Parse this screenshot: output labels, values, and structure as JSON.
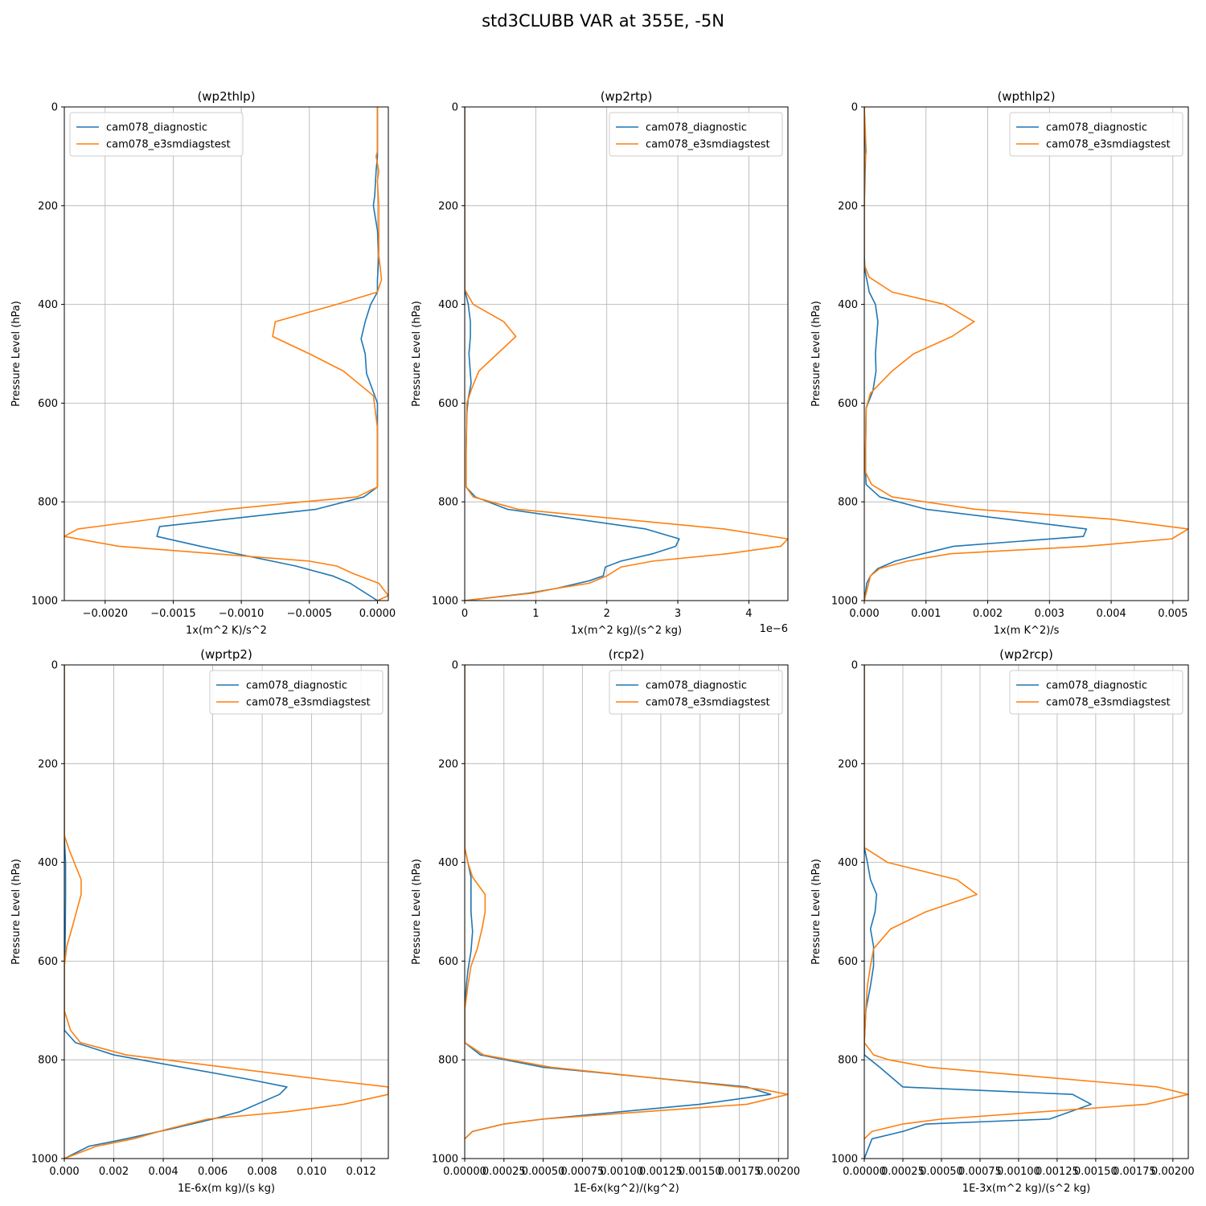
{
  "suptitle": "std3CLUBB VAR at 355E, -5N",
  "colors": {
    "cam078_diagnostic": "#1f77b4",
    "cam078_e3smdiagstest": "#ff7f0e",
    "grid": "#b0b0b0"
  },
  "chart_data": [
    {
      "type": "line",
      "title": "(wp2thlp)",
      "xlabel": "1x(m^2 K)/s^2",
      "ylabel": "Pressure Level (hPa)",
      "xlim": [
        -0.0023,
        8e-05
      ],
      "ylim": [
        1000,
        0
      ],
      "xticks": [
        -0.002,
        -0.0015,
        -0.001,
        -0.0005,
        0.0
      ],
      "xticklabels": [
        "−0.0020",
        "−0.0015",
        "−0.0010",
        "−0.0005",
        "0.0000"
      ],
      "yticks": [
        0,
        200,
        400,
        600,
        800,
        1000
      ],
      "grid": true,
      "legend": "top-left",
      "series": [
        {
          "name": "cam078_diagnostic",
          "x": [
            0,
            0,
            -1e-05,
            -2e-05,
            -3e-05,
            0,
            1e-05,
            0,
            0,
            -5e-05,
            -9e-05,
            -0.00012,
            -9e-05,
            -8e-05,
            0,
            0,
            0,
            -0.0001,
            -0.00045,
            -0.0016,
            -0.00162,
            -0.0013,
            -0.0006,
            -0.00033,
            -0.0002,
            0
          ],
          "y": [
            0,
            100,
            130,
            180,
            200,
            250,
            300,
            350,
            375,
            400,
            435,
            470,
            500,
            540,
            600,
            700,
            770,
            790,
            815,
            850,
            870,
            890,
            930,
            950,
            965,
            1000
          ]
        },
        {
          "name": "cam078_e3smdiagstest",
          "x": [
            0,
            0,
            -1e-05,
            1e-05,
            0,
            1e-05,
            1e-05,
            3e-05,
            0,
            -0.0003,
            -0.00075,
            -0.00077,
            -0.0005,
            -0.00025,
            -3e-05,
            0,
            0,
            -0.00015,
            -0.00055,
            -0.0011,
            -0.0022,
            -0.0023,
            -0.0019,
            -0.0005,
            -0.0003,
            -0.00018,
            1e-05,
            8e-05,
            0
          ],
          "y": [
            0,
            90,
            100,
            130,
            150,
            200,
            300,
            350,
            375,
            400,
            435,
            465,
            500,
            535,
            585,
            650,
            770,
            790,
            800,
            815,
            855,
            870,
            890,
            920,
            930,
            945,
            965,
            990,
            1000
          ]
        }
      ]
    },
    {
      "type": "line",
      "title": "(wp2rtp)",
      "xlabel": "1x(m^2 kg)/(s^2 kg)",
      "offset_text": "1e−6",
      "ylabel": "Pressure Level (hPa)",
      "xlim": [
        0,
        4.55
      ],
      "ylim": [
        1000,
        0
      ],
      "xticks": [
        0,
        1,
        2,
        3,
        4
      ],
      "xticklabels": [
        "0",
        "1",
        "2",
        "3",
        "4"
      ],
      "yticks": [
        0,
        200,
        400,
        600,
        800,
        1000
      ],
      "grid": true,
      "legend": "top-right",
      "series": [
        {
          "name": "cam078_diagnostic",
          "x": [
            0,
            0,
            0,
            0.05,
            0.08,
            0.08,
            0.06,
            0.09,
            0.05,
            0.03,
            0.02,
            0.02,
            0.15,
            0.6,
            2.55,
            3.02,
            2.97,
            2.65,
            2.2,
            1.98,
            1.95,
            1.75,
            1.3,
            0.9,
            0
          ],
          "y": [
            0,
            200,
            370,
            400,
            435,
            465,
            500,
            560,
            590,
            620,
            700,
            770,
            790,
            815,
            855,
            875,
            890,
            905,
            920,
            932,
            950,
            960,
            975,
            985,
            1000
          ]
        },
        {
          "name": "cam078_e3smdiagstest",
          "x": [
            0,
            0,
            0,
            0.12,
            0.55,
            0.72,
            0.2,
            0.1,
            0.03,
            0.02,
            0.02,
            0.12,
            0.75,
            3.65,
            4.55,
            4.45,
            3.7,
            2.65,
            2.2,
            2.0,
            1.75,
            1.3,
            0.95,
            0
          ],
          "y": [
            0,
            200,
            370,
            400,
            435,
            465,
            535,
            570,
            600,
            700,
            770,
            790,
            815,
            855,
            875,
            890,
            905,
            920,
            932,
            950,
            965,
            975,
            985,
            1000
          ]
        }
      ]
    },
    {
      "type": "line",
      "title": "(wpthlp2)",
      "xlabel": "1x(m K^2)/s",
      "ylabel": "Pressure Level (hPa)",
      "xlim": [
        0,
        0.00525
      ],
      "ylim": [
        1000,
        0
      ],
      "xticks": [
        0,
        0.001,
        0.002,
        0.003,
        0.004,
        0.005
      ],
      "xticklabels": [
        "0.000",
        "0.001",
        "0.002",
        "0.003",
        "0.004",
        "0.005"
      ],
      "yticks": [
        0,
        200,
        400,
        600,
        800,
        1000
      ],
      "grid": true,
      "legend": "top-right",
      "series": [
        {
          "name": "cam078_diagnostic",
          "x": [
            0,
            2e-05,
            2e-05,
            0,
            0,
            1e-05,
            8e-05,
            0.00018,
            0.00022,
            0.00018,
            0.00019,
            0.00014,
            3e-05,
            2e-05,
            2e-05,
            3e-05,
            0.00025,
            0.001,
            0.0036,
            0.00355,
            0.00145,
            0.00095,
            0.0005,
            0.00022,
            0.0001,
            4e-05,
            0
          ],
          "y": [
            0,
            90,
            100,
            200,
            300,
            330,
            375,
            400,
            435,
            500,
            535,
            575,
            610,
            700,
            740,
            765,
            790,
            815,
            855,
            870,
            890,
            905,
            920,
            935,
            950,
            965,
            1000
          ]
        },
        {
          "name": "cam078_e3smdiagstest",
          "x": [
            0,
            3e-05,
            1e-05,
            0,
            0,
            8e-05,
            0.00045,
            0.0013,
            0.00178,
            0.00142,
            0.0008,
            0.00045,
            0.0001,
            3e-05,
            2e-05,
            2e-05,
            0.00012,
            0.00045,
            0.0018,
            0.004,
            0.00525,
            0.00498,
            0.0036,
            0.0014,
            0.0007,
            0.00025,
            0.0001,
            0
          ],
          "y": [
            0,
            90,
            115,
            200,
            320,
            345,
            375,
            400,
            435,
            465,
            500,
            535,
            580,
            610,
            700,
            740,
            765,
            790,
            815,
            835,
            855,
            875,
            890,
            905,
            920,
            935,
            950,
            1000
          ]
        }
      ]
    },
    {
      "type": "line",
      "title": "(wprtp2)",
      "xlabel": "1E-6x(m kg)/(s kg)",
      "ylabel": "Pressure Level (hPa)",
      "xlim": [
        0,
        0.0131
      ],
      "ylim": [
        1000,
        0
      ],
      "xticks": [
        0,
        0.002,
        0.004,
        0.006,
        0.008,
        0.01,
        0.012
      ],
      "xticklabels": [
        "0.000",
        "0.002",
        "0.004",
        "0.006",
        "0.008",
        "0.010",
        "0.012"
      ],
      "yticks": [
        0,
        200,
        400,
        600,
        800,
        1000
      ],
      "grid": true,
      "legend": "top-right",
      "series": [
        {
          "name": "cam078_diagnostic",
          "x": [
            0,
            0,
            5e-05,
            5e-05,
            4e-05,
            3e-05,
            0,
            0,
            0,
            0.00045,
            0.002,
            0.0075,
            0.009,
            0.0087,
            0.0071,
            0.006,
            0.0043,
            0.0025,
            0.001,
            0
          ],
          "y": [
            0,
            350,
            400,
            465,
            535,
            570,
            610,
            700,
            740,
            765,
            790,
            840,
            855,
            870,
            905,
            920,
            940,
            960,
            975,
            1000
          ]
        },
        {
          "name": "cam078_e3smdiagstest",
          "x": [
            0,
            0,
            0.0002,
            0.00068,
            0.00068,
            0.0003,
            0.0001,
            0,
            0,
            0.00025,
            0.00065,
            0.0025,
            0.0105,
            0.0131,
            0.0131,
            0.0113,
            0.009,
            0.0058,
            0.0042,
            0.0028,
            0.0013,
            0
          ],
          "y": [
            0,
            345,
            375,
            435,
            465,
            535,
            570,
            610,
            700,
            740,
            765,
            790,
            840,
            855,
            870,
            890,
            905,
            920,
            940,
            960,
            975,
            1000
          ]
        }
      ]
    },
    {
      "type": "line",
      "title": "(rcp2)",
      "xlabel": "1E-6x(kg^2)/(kg^2)",
      "ylabel": "Pressure Level (hPa)",
      "xlim": [
        0,
        0.00206
      ],
      "ylim": [
        1000,
        0
      ],
      "xticks": [
        0,
        0.00025,
        0.0005,
        0.00075,
        0.001,
        0.00125,
        0.0015,
        0.00175,
        0.002
      ],
      "xticklabels": [
        "0.00000",
        "0.00025",
        "0.00050",
        "0.00075",
        "0.00100",
        "0.00125",
        "0.00150",
        "0.00175",
        "0.00200"
      ],
      "yticks": [
        0,
        200,
        400,
        600,
        800,
        1000
      ],
      "grid": true,
      "legend": "top-right",
      "series": [
        {
          "name": "cam078_diagnostic",
          "x": [
            0,
            0,
            2e-05,
            4e-05,
            4e-05,
            5e-05,
            4e-05,
            2e-05,
            1e-05,
            0,
            0,
            0.0001,
            0.0005,
            0.0018,
            0.00195,
            0.0015,
            0.0005,
            0.00025,
            5e-05,
            0
          ],
          "y": [
            0,
            370,
            400,
            430,
            500,
            540,
            580,
            620,
            650,
            700,
            765,
            790,
            815,
            855,
            870,
            890,
            920,
            930,
            945,
            960
          ]
        },
        {
          "name": "cam078_e3smdiagstest",
          "x": [
            0,
            0,
            2e-05,
            5e-05,
            0.00013,
            0.00013,
            0.00011,
            8e-05,
            4e-05,
            2e-05,
            0,
            0,
            0.00012,
            0.00055,
            0.0019,
            0.00206,
            0.0018,
            0.0005,
            0.00025,
            5e-05,
            0
          ],
          "y": [
            0,
            370,
            400,
            430,
            465,
            500,
            535,
            575,
            610,
            650,
            700,
            765,
            790,
            815,
            860,
            870,
            890,
            920,
            930,
            945,
            960
          ]
        }
      ]
    },
    {
      "type": "line",
      "title": "(wp2rcp)",
      "xlabel": "1E-3x(m^2 kg)/(s^2 kg)",
      "ylabel": "Pressure Level (hPa)",
      "xlim": [
        0,
        0.0021
      ],
      "ylim": [
        1000,
        0
      ],
      "xticks": [
        0,
        0.00025,
        0.0005,
        0.00075,
        0.001,
        0.00125,
        0.0015,
        0.00175,
        0.002
      ],
      "xticklabels": [
        "0.00000",
        "0.00025",
        "0.00050",
        "0.00075",
        "0.00100",
        "0.00125",
        "0.00150",
        "0.00175",
        "0.00200"
      ],
      "yticks": [
        0,
        200,
        400,
        600,
        800,
        1000
      ],
      "grid": true,
      "legend": "top-right",
      "series": [
        {
          "name": "cam078_diagnostic",
          "x": [
            0,
            0,
            2e-05,
            4e-05,
            8e-05,
            7e-05,
            4e-05,
            6e-05,
            6e-05,
            4e-05,
            1e-05,
            0,
            0,
            0.0001,
            0.00025,
            0.00135,
            0.00147,
            0.0012,
            0.0004,
            0.00025,
            5e-05,
            0
          ],
          "y": [
            0,
            370,
            400,
            435,
            465,
            500,
            535,
            570,
            610,
            650,
            700,
            765,
            790,
            815,
            855,
            870,
            890,
            920,
            930,
            945,
            960,
            1000
          ]
        },
        {
          "name": "cam078_e3smdiagstest",
          "x": [
            0,
            0,
            0.00015,
            0.0006,
            0.00073,
            0.0004,
            0.00017,
            6e-05,
            4e-05,
            2e-05,
            1e-05,
            0,
            6e-05,
            0.00016,
            0.00042,
            0.0019,
            0.0021,
            0.00183,
            0.0005,
            0.00025,
            5e-05,
            0
          ],
          "y": [
            0,
            370,
            400,
            435,
            465,
            500,
            535,
            575,
            610,
            650,
            700,
            765,
            790,
            800,
            815,
            855,
            870,
            890,
            920,
            930,
            945,
            960
          ]
        }
      ]
    }
  ]
}
